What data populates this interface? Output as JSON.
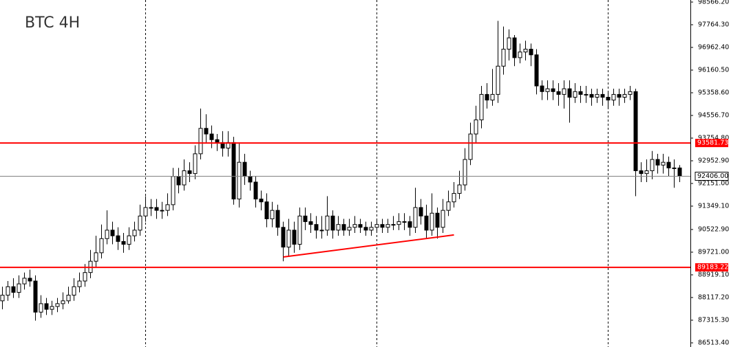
{
  "chart_data": {
    "type": "candlestick",
    "title": "BTC 4H",
    "open": [
      88000,
      88200,
      88500,
      88300,
      88600,
      88800,
      88700,
      87600,
      87900,
      87700,
      87800,
      87900,
      88000,
      88200,
      88500,
      88700,
      89000,
      89400,
      89700,
      90200,
      90500,
      90300,
      90100,
      90000,
      90300,
      90500,
      91000,
      91300,
      91300,
      91200,
      91200,
      91400,
      92400,
      92100,
      92600,
      92500,
      93200,
      94100,
      93900,
      93700,
      93600,
      93400,
      93600,
      91600,
      92900,
      92400,
      92200,
      91600,
      91500,
      90900,
      91200,
      90600,
      89900,
      90500,
      90000,
      91000,
      90800,
      90700,
      90500,
      90500,
      91000,
      90500,
      90700,
      90500,
      90600,
      90700,
      90600,
      90500,
      90600,
      90700,
      90600,
      90700,
      90700,
      90800,
      90800,
      90600,
      91300,
      91000,
      90500,
      91100,
      90600,
      91200,
      91500,
      91800,
      92100,
      93000,
      93900,
      94400,
      95300,
      95100,
      95300,
      96300,
      96900,
      97300,
      96600,
      96800,
      96900,
      96700,
      95600,
      95400,
      95500,
      95400,
      95300,
      95500,
      95200,
      95400,
      95300,
      95300,
      95200,
      95300,
      95200,
      95100,
      95300,
      95200,
      95300,
      95400,
      92600,
      92500,
      92600,
      93000,
      92800,
      92900,
      92700,
      92700
    ],
    "high": [
      88500,
      88700,
      88800,
      88900,
      89000,
      89100,
      88900,
      88200,
      88100,
      88000,
      88100,
      88300,
      88500,
      88800,
      89000,
      89300,
      89800,
      90300,
      90700,
      91200,
      90800,
      90600,
      90400,
      90600,
      90800,
      91400,
      91700,
      91600,
      91600,
      91500,
      91800,
      92700,
      92700,
      93000,
      92900,
      93500,
      94800,
      94600,
      94200,
      93900,
      94000,
      94000,
      93800,
      93600,
      93200,
      92600,
      92400,
      91900,
      91800,
      91500,
      91400,
      90800,
      90900,
      90800,
      91300,
      91300,
      91100,
      91000,
      91000,
      91700,
      91200,
      91000,
      90900,
      90900,
      91000,
      90900,
      90800,
      90800,
      90900,
      90900,
      90900,
      91000,
      91100,
      91100,
      91000,
      92000,
      91600,
      91400,
      91800,
      91300,
      91600,
      91900,
      92200,
      92600,
      93400,
      94300,
      94900,
      95600,
      95700,
      96200,
      97900,
      97700,
      97600,
      97400,
      97100,
      97200,
      97100,
      96900,
      95800,
      95800,
      95800,
      95700,
      95800,
      95800,
      95700,
      95600,
      95600,
      95500,
      95500,
      95500,
      95400,
      95500,
      95500,
      95500,
      95600,
      95500,
      92900,
      93000,
      93300,
      93200,
      93200,
      93100,
      93000,
      92800
    ],
    "low": [
      87700,
      88000,
      88100,
      88100,
      88400,
      88500,
      87300,
      87400,
      87500,
      87500,
      87600,
      87700,
      87900,
      88000,
      88300,
      88500,
      88800,
      89200,
      89500,
      90000,
      90000,
      89800,
      89700,
      89800,
      90100,
      90300,
      90800,
      91000,
      90900,
      90900,
      91000,
      91200,
      91800,
      91900,
      92200,
      92300,
      93000,
      93600,
      93400,
      93300,
      93100,
      93100,
      91400,
      91300,
      92100,
      91900,
      91300,
      91200,
      90600,
      90600,
      90300,
      89400,
      89600,
      89700,
      89800,
      90500,
      90400,
      90200,
      90200,
      90300,
      90200,
      90300,
      90300,
      90300,
      90400,
      90400,
      90300,
      90300,
      90400,
      90400,
      90400,
      90500,
      90500,
      90500,
      90300,
      90400,
      90700,
      90200,
      90300,
      90200,
      90400,
      91000,
      91300,
      91600,
      91900,
      92800,
      93600,
      94100,
      94800,
      94900,
      95000,
      96000,
      96500,
      96300,
      96400,
      96500,
      96300,
      95300,
      95100,
      95100,
      95100,
      94900,
      94800,
      94300,
      95000,
      95000,
      95000,
      94900,
      95000,
      94900,
      94800,
      94900,
      94900,
      95000,
      95100,
      91700,
      92200,
      92200,
      92300,
      92500,
      92500,
      92400,
      92000,
      92200
    ],
    "close": [
      88200,
      88500,
      88300,
      88600,
      88800,
      88700,
      87600,
      87900,
      87700,
      87800,
      87900,
      88000,
      88200,
      88500,
      88700,
      89000,
      89400,
      89700,
      90200,
      90500,
      90300,
      90100,
      90000,
      90300,
      90500,
      91000,
      91300,
      91300,
      91200,
      91200,
      91400,
      92400,
      92100,
      92600,
      92500,
      93200,
      94100,
      93900,
      93700,
      93600,
      93400,
      93600,
      91600,
      92900,
      92400,
      92200,
      91600,
      91500,
      90900,
      91200,
      90600,
      89900,
      90500,
      90000,
      91000,
      90800,
      90700,
      90500,
      90500,
      91000,
      90500,
      90700,
      90500,
      90600,
      90700,
      90600,
      90500,
      90600,
      90700,
      90600,
      90700,
      90700,
      90800,
      90800,
      90600,
      91300,
      91000,
      90500,
      91100,
      90600,
      91200,
      91500,
      91800,
      92100,
      93000,
      93900,
      94400,
      95300,
      95100,
      95300,
      96300,
      96900,
      97300,
      96600,
      96800,
      96900,
      96700,
      95600,
      95400,
      95500,
      95400,
      95300,
      95500,
      95200,
      95400,
      95300,
      95300,
      95200,
      95300,
      95200,
      95100,
      95300,
      95200,
      95300,
      95400,
      92600,
      92500,
      92600,
      93000,
      92800,
      92900,
      92700,
      92700,
      92406
    ],
    "up_color": "#ffffff",
    "down_color": "#000000",
    "ylim": [
      86367,
      98639
    ],
    "yticks": [
      {
        "value": 98566.2,
        "label": "98566.20"
      },
      {
        "value": 97764.3,
        "label": "97764.30"
      },
      {
        "value": 96962.4,
        "label": "96962.40"
      },
      {
        "value": 96160.5,
        "label": "96160.50"
      },
      {
        "value": 95358.6,
        "label": "95358.60"
      },
      {
        "value": 94556.7,
        "label": "94556.70"
      },
      {
        "value": 93754.8,
        "label": "93754.80"
      },
      {
        "value": 92952.9,
        "label": "92952.90"
      },
      {
        "value": 92151,
        "label": "92151.00"
      },
      {
        "value": 91349.1,
        "label": "91349.10"
      },
      {
        "value": 90522.9,
        "label": "90522.90"
      },
      {
        "value": 89721,
        "label": "89721.00"
      },
      {
        "value": 88919.1,
        "label": "88919.10"
      },
      {
        "value": 88117.2,
        "label": "88117.20"
      },
      {
        "value": 87315.3,
        "label": "87315.30"
      },
      {
        "value": 86513.4,
        "label": "86513.40"
      }
    ],
    "levels": [
      {
        "value": 93581.73,
        "label": "93581.73",
        "color": "#ff0000"
      },
      {
        "value": 89183.22,
        "label": "89183.22",
        "color": "#ff0000"
      }
    ],
    "current_price": {
      "value": 92406,
      "label": "92406.00",
      "color": "#808080"
    },
    "trendline": {
      "start_index": 51,
      "start_value": 89550,
      "end_index": 82,
      "end_value": 90330,
      "color": "#ff0000"
    }
  }
}
